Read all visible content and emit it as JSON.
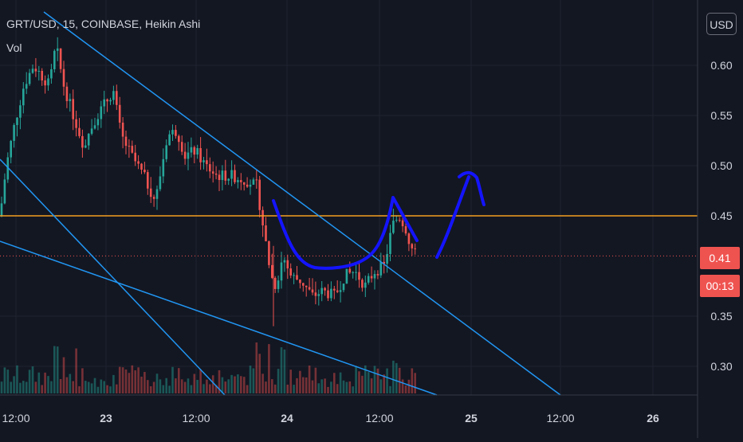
{
  "legend": {
    "symbol_line": "GRT/USD, 15, COINBASE, Heikin Ashi",
    "volume_label": "Vol"
  },
  "currency_button": "USD",
  "last_price_label": "0.41",
  "countdown_label": "00:13",
  "colors": {
    "background": "#131722",
    "up": "#26a69a",
    "down": "#ef5350",
    "trendline": "#2196f3",
    "hline": "#f59f1f",
    "drawing": "#1414ff",
    "grid": "#1f2330",
    "text": "#d1d4dc"
  },
  "chart_data": {
    "type": "candlestick",
    "title": "GRT/USD, 15, COINBASE, Heikin Ashi",
    "y_axis": {
      "range": [
        0.265,
        0.665
      ],
      "ticks": [
        "0.60",
        "0.55",
        "0.50",
        "0.45",
        "0.35",
        "0.30"
      ]
    },
    "x_axis": {
      "ticks": [
        "12:00",
        "23",
        "12:00",
        "24",
        "12:00",
        "25",
        "12:00",
        "26"
      ]
    },
    "horizontal_line": 0.45,
    "last_price": 0.41,
    "price_path": [
      [
        0,
        0.45
      ],
      [
        8,
        0.5
      ],
      [
        18,
        0.54
      ],
      [
        30,
        0.58
      ],
      [
        42,
        0.6
      ],
      [
        52,
        0.59
      ],
      [
        62,
        0.58
      ],
      [
        70,
        0.62
      ],
      [
        80,
        0.58
      ],
      [
        92,
        0.55
      ],
      [
        105,
        0.52
      ],
      [
        118,
        0.545
      ],
      [
        130,
        0.56
      ],
      [
        142,
        0.575
      ],
      [
        152,
        0.53
      ],
      [
        165,
        0.51
      ],
      [
        180,
        0.49
      ],
      [
        195,
        0.465
      ],
      [
        210,
        0.53
      ],
      [
        222,
        0.535
      ],
      [
        232,
        0.51
      ],
      [
        245,
        0.515
      ],
      [
        258,
        0.5
      ],
      [
        272,
        0.49
      ],
      [
        290,
        0.49
      ],
      [
        310,
        0.485
      ],
      [
        322,
        0.48
      ],
      [
        332,
        0.43
      ],
      [
        340,
        0.39
      ],
      [
        346,
        0.38
      ],
      [
        355,
        0.41
      ],
      [
        365,
        0.39
      ],
      [
        378,
        0.385
      ],
      [
        392,
        0.37
      ],
      [
        405,
        0.375
      ],
      [
        420,
        0.37
      ],
      [
        432,
        0.39
      ],
      [
        445,
        0.395
      ],
      [
        458,
        0.38
      ],
      [
        470,
        0.395
      ],
      [
        482,
        0.4
      ],
      [
        492,
        0.44
      ],
      [
        500,
        0.45
      ],
      [
        508,
        0.44
      ],
      [
        515,
        0.42
      ],
      [
        522,
        0.41
      ]
    ],
    "volume_bars": {
      "range": [
        0,
        1
      ],
      "series": "per-candle volume, unlabeled"
    },
    "legend": "top-left",
    "grid": true
  }
}
